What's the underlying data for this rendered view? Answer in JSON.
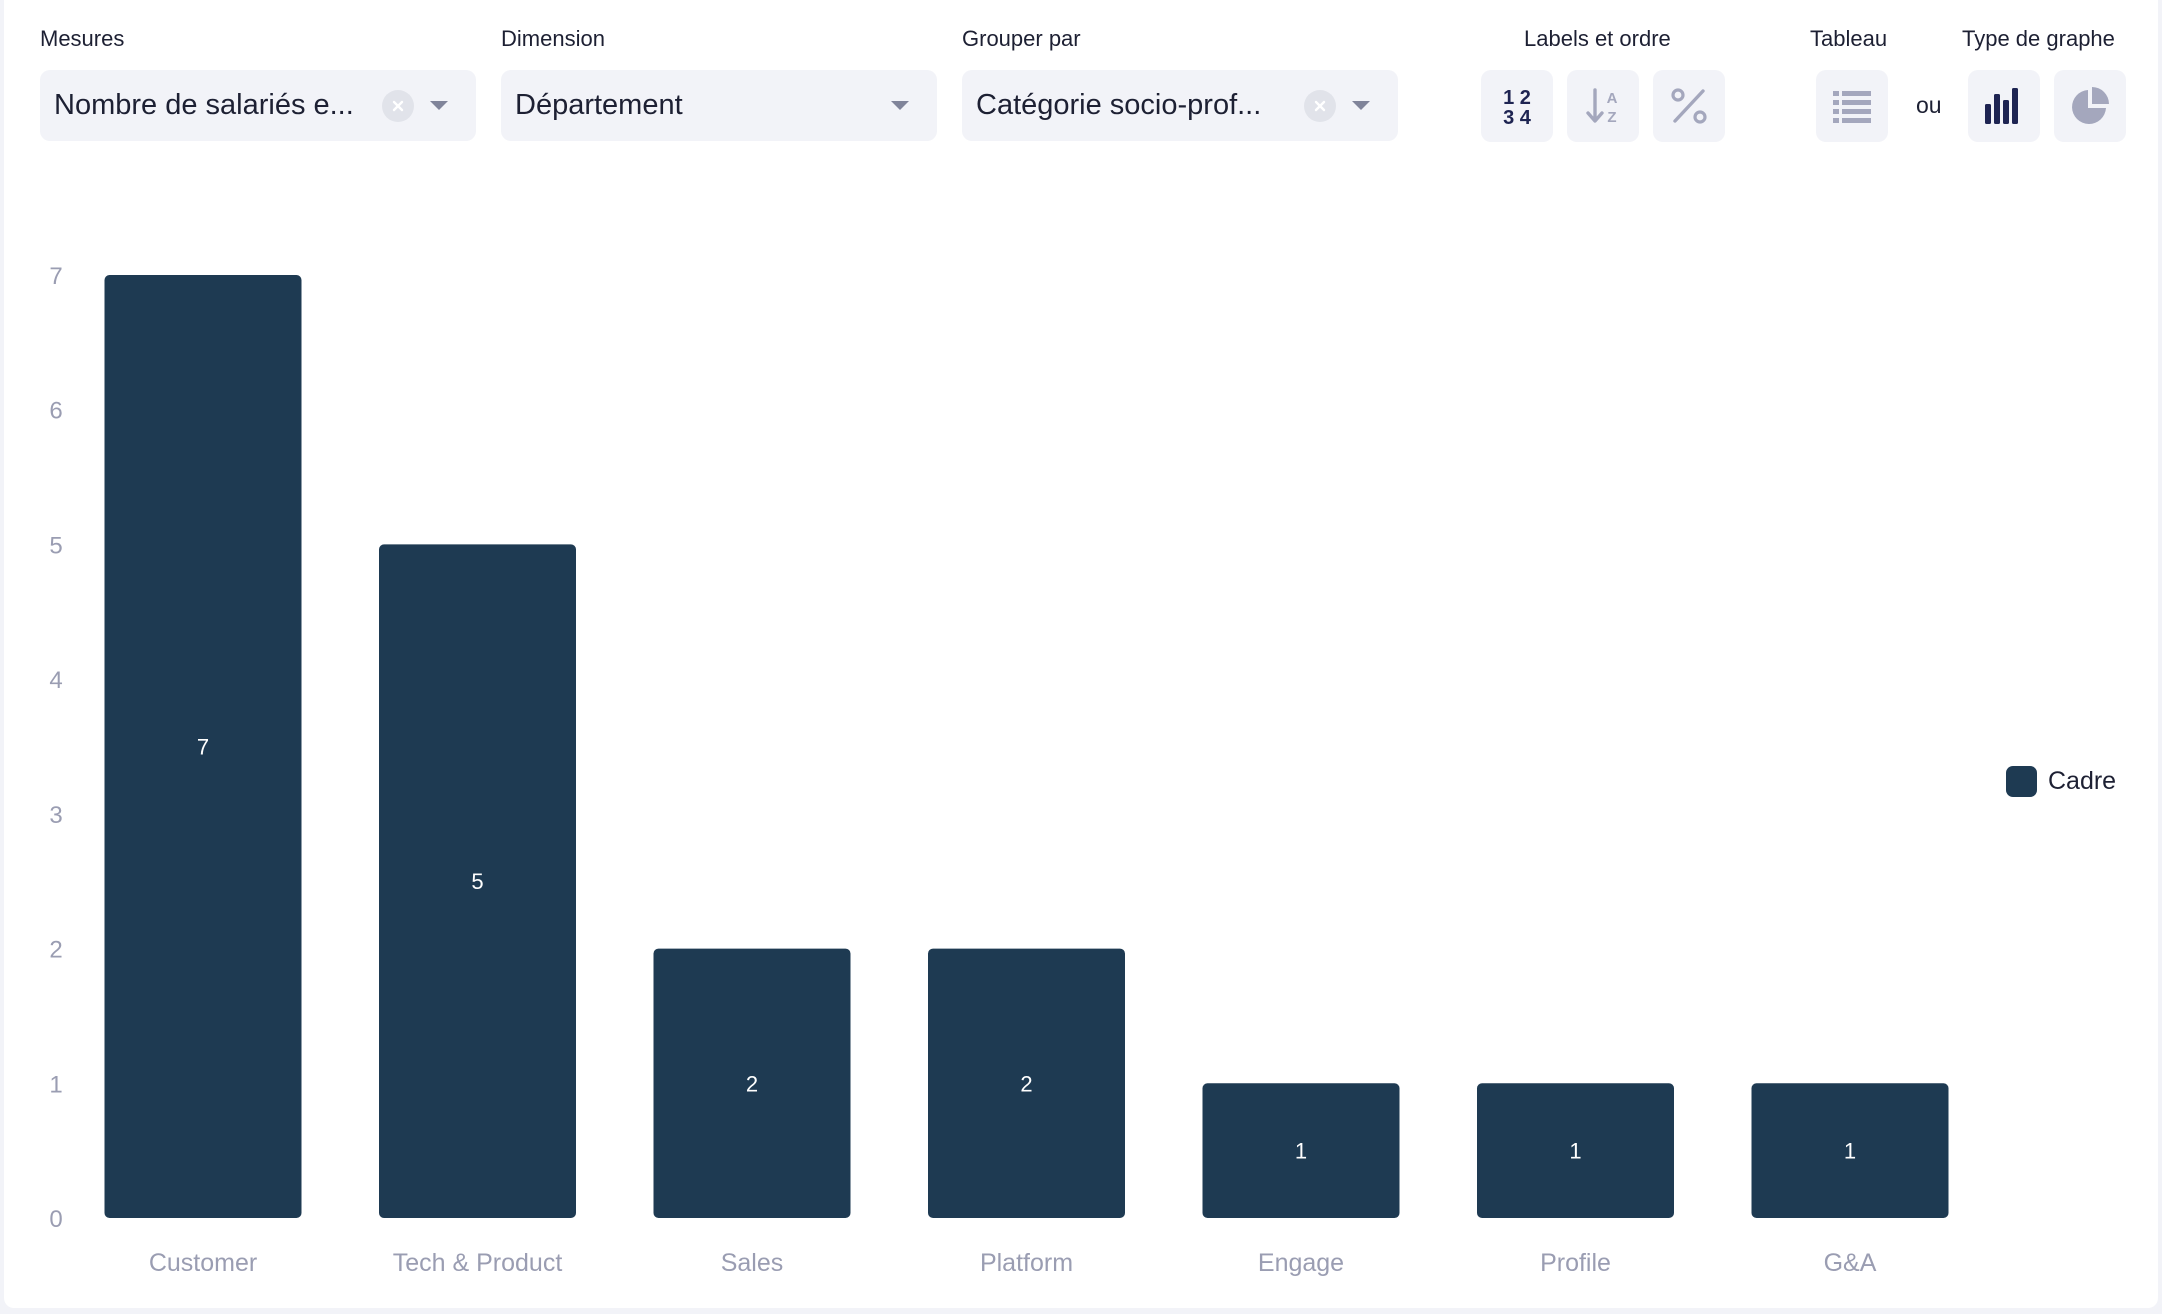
{
  "controls": {
    "measures": {
      "label": "Mesures",
      "value": "Nombre de salariés e..."
    },
    "dimension": {
      "label": "Dimension",
      "value": "Département"
    },
    "group_by": {
      "label": "Grouper par",
      "value": "Catégorie socio-prof..."
    },
    "labels_order": {
      "label": "Labels et ordre",
      "buttons": [
        "numbers-icon",
        "sort-alpha-icon",
        "percent-icon"
      ]
    },
    "table": {
      "label": "Tableau",
      "button": "list-icon"
    },
    "or_text": "ou",
    "chart_type": {
      "label": "Type de graphe",
      "buttons": [
        "bar-chart-icon",
        "pie-chart-icon"
      ]
    }
  },
  "colors": {
    "bar": "#1e3a52",
    "active_icon": "#1e2452",
    "inactive_icon": "#a4a7bd"
  },
  "chart_data": {
    "type": "bar",
    "categories": [
      "Customer",
      "Tech & Product",
      "Sales",
      "Platform",
      "Engage",
      "Profile",
      "G&A"
    ],
    "series": [
      {
        "name": "Cadre",
        "values": [
          7,
          5,
          2,
          2,
          1,
          1,
          1
        ]
      }
    ],
    "ylim": [
      0,
      7
    ],
    "yticks": [
      0,
      1,
      2,
      3,
      4,
      5,
      6,
      7
    ],
    "data_labels": true,
    "grid": false,
    "legend": "right"
  }
}
